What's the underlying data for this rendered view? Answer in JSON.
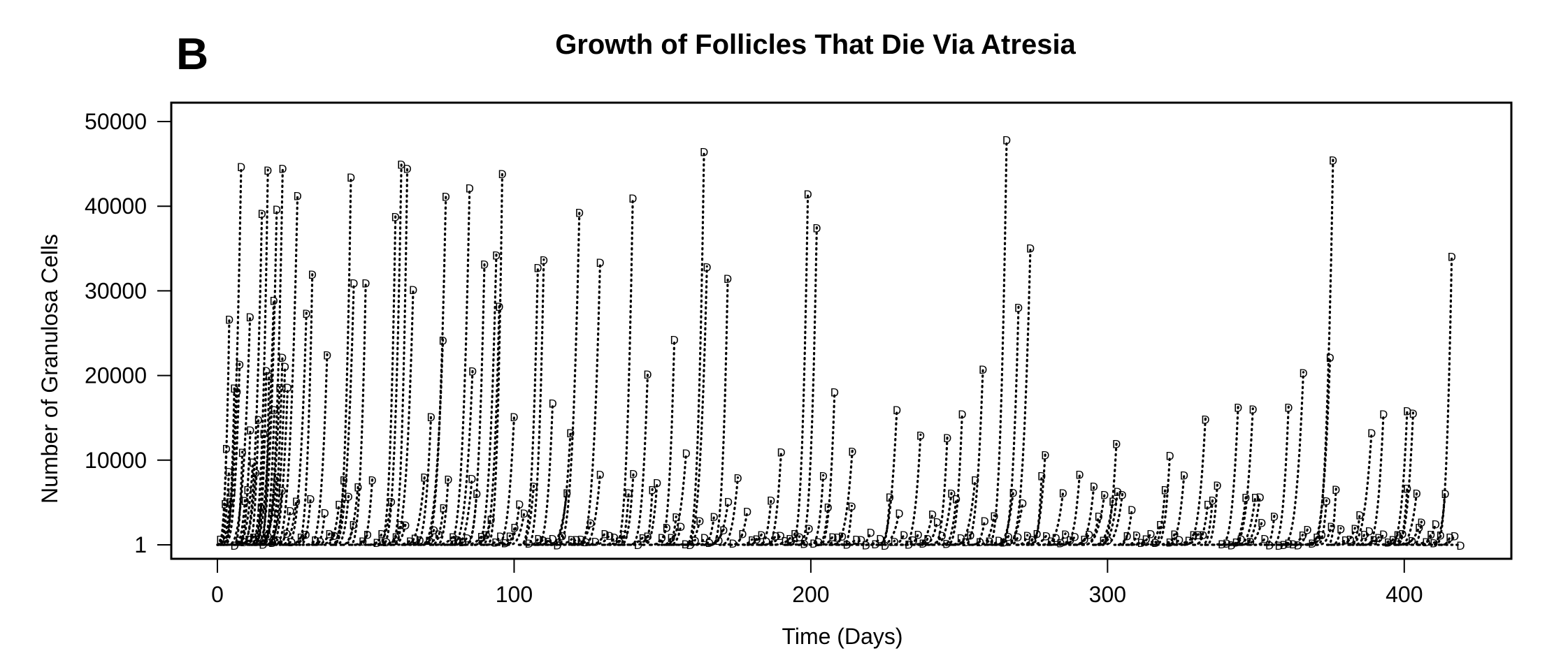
{
  "panel_label": "B",
  "chart_data": {
    "type": "line",
    "title": "Growth of Follicles That Die Via Atresia",
    "xlabel": "Time (Days)",
    "ylabel": "Number of Granulosa Cells",
    "xlim": [
      -15,
      438
    ],
    "ylim": [
      -2000,
      51000
    ],
    "xticks": [
      0,
      100,
      200,
      300,
      400
    ],
    "xtick_labels": [
      "0",
      "100",
      "200",
      "300",
      "400"
    ],
    "yticks": [
      1,
      10000,
      20000,
      30000,
      40000,
      50000
    ],
    "ytick_labels": [
      "1",
      "10000",
      "20000",
      "30000",
      "40000",
      "50000"
    ],
    "marker": "D",
    "line_style": "dotted",
    "marker_description": "each follicle trajectory ends at its death-time value (marker D)",
    "series_summary": "Hundreds of follicle trajectories; each grows exponentially from 1 cell and ends at the atresia point",
    "peaks": [
      {
        "x": 8,
        "y": 44700
      },
      {
        "x": 17,
        "y": 44300
      },
      {
        "x": 22,
        "y": 44500
      },
      {
        "x": 27,
        "y": 41300
      },
      {
        "x": 20,
        "y": 39700
      },
      {
        "x": 15,
        "y": 39200
      },
      {
        "x": 32,
        "y": 32000
      },
      {
        "x": 11,
        "y": 27000
      },
      {
        "x": 4,
        "y": 26700
      },
      {
        "x": 19,
        "y": 28900
      },
      {
        "x": 30,
        "y": 27400
      },
      {
        "x": 45,
        "y": 43500
      },
      {
        "x": 46,
        "y": 31000
      },
      {
        "x": 50,
        "y": 31000
      },
      {
        "x": 62,
        "y": 45000
      },
      {
        "x": 64,
        "y": 44500
      },
      {
        "x": 60,
        "y": 38800
      },
      {
        "x": 66,
        "y": 30200
      },
      {
        "x": 77,
        "y": 41200
      },
      {
        "x": 85,
        "y": 42200
      },
      {
        "x": 96,
        "y": 43900
      },
      {
        "x": 90,
        "y": 33200
      },
      {
        "x": 94,
        "y": 34300
      },
      {
        "x": 95,
        "y": 28200
      },
      {
        "x": 110,
        "y": 33700
      },
      {
        "x": 108,
        "y": 32800
      },
      {
        "x": 122,
        "y": 39300
      },
      {
        "x": 129,
        "y": 33400
      },
      {
        "x": 140,
        "y": 41000
      },
      {
        "x": 164,
        "y": 46500
      },
      {
        "x": 165,
        "y": 32900
      },
      {
        "x": 172,
        "y": 31500
      },
      {
        "x": 154,
        "y": 24300
      },
      {
        "x": 199,
        "y": 41500
      },
      {
        "x": 202,
        "y": 37500
      },
      {
        "x": 266,
        "y": 47900
      },
      {
        "x": 274,
        "y": 35100
      },
      {
        "x": 270,
        "y": 28100
      },
      {
        "x": 376,
        "y": 45500
      },
      {
        "x": 416,
        "y": 34100
      },
      {
        "x": 37,
        "y": 22500
      },
      {
        "x": 76,
        "y": 24200
      },
      {
        "x": 86,
        "y": 20600
      },
      {
        "x": 145,
        "y": 20200
      },
      {
        "x": 258,
        "y": 20800
      },
      {
        "x": 366,
        "y": 20400
      },
      {
        "x": 375,
        "y": 22200
      },
      {
        "x": 208,
        "y": 18100
      },
      {
        "x": 229,
        "y": 16000
      },
      {
        "x": 251,
        "y": 15500
      },
      {
        "x": 333,
        "y": 14900
      },
      {
        "x": 344,
        "y": 16300
      },
      {
        "x": 349,
        "y": 16100
      },
      {
        "x": 361,
        "y": 16300
      },
      {
        "x": 393,
        "y": 15500
      },
      {
        "x": 401,
        "y": 15900
      },
      {
        "x": 403,
        "y": 15600
      },
      {
        "x": 389,
        "y": 13300
      },
      {
        "x": 237,
        "y": 13000
      },
      {
        "x": 246,
        "y": 12700
      },
      {
        "x": 303,
        "y": 12000
      },
      {
        "x": 190,
        "y": 11000
      },
      {
        "x": 214,
        "y": 11100
      },
      {
        "x": 321,
        "y": 10600
      },
      {
        "x": 279,
        "y": 10700
      },
      {
        "x": 72,
        "y": 15200
      },
      {
        "x": 100,
        "y": 15200
      },
      {
        "x": 113,
        "y": 16800
      },
      {
        "x": 158,
        "y": 10900
      },
      {
        "x": 119,
        "y": 13300
      },
      {
        "x": 285,
        "y": 6200
      },
      {
        "x": 299,
        "y": 6000
      },
      {
        "x": 352,
        "y": 2700
      },
      {
        "x": 405,
        "y": 2100
      },
      {
        "x": 410,
        "y": 300
      },
      {
        "x": 419,
        "y": 0
      }
    ]
  }
}
